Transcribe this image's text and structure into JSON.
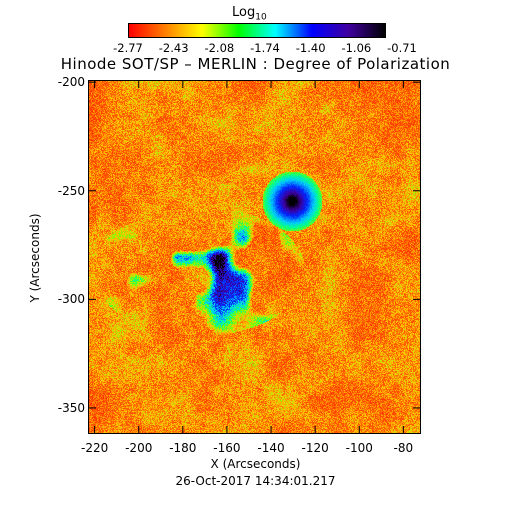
{
  "colorbar": {
    "label_main": "Log",
    "label_sub": "10",
    "ticks": [
      "-2.77",
      "-2.43",
      "-2.08",
      "-1.74",
      "-1.40",
      "-1.06",
      "-0.71"
    ],
    "colormap": [
      "#ff0000",
      "#ff8000",
      "#ffff00",
      "#00ff00",
      "#00ffff",
      "#0000ff",
      "#4000a0",
      "#000000"
    ]
  },
  "title": "Hinode SOT/SP – MERLIN : Degree of Polarization",
  "axes": {
    "xlabel": "X (Arcseconds)",
    "ylabel": "Y (Arcseconds)",
    "xticks": [
      "-220",
      "-200",
      "-180",
      "-160",
      "-140",
      "-120",
      "-100",
      "-80"
    ],
    "yticks": [
      "-200",
      "-250",
      "-300",
      "-350"
    ],
    "xrange": [
      -223,
      -72
    ],
    "yrange": [
      -362,
      -199
    ]
  },
  "timestamp": "26-Oct-2017 14:34:01.217"
}
